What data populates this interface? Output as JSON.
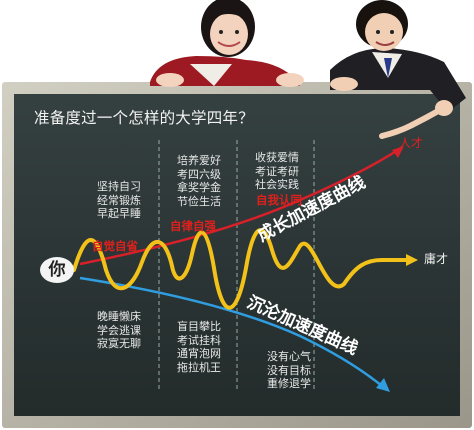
{
  "title": "准备度过一个怎样的大学四年？",
  "you_label": "你",
  "labels": {
    "talent": "人才",
    "mediocre": "庸才",
    "growth_curve": "成长加速度曲线",
    "sink_curve": "沉沦加速度曲线"
  },
  "red_tags": [
    "自觉自省",
    "自律自强",
    "自我认同"
  ],
  "top_groups": [
    "坚持自习\n经常锻炼\n早起早睡",
    "培养爱好\n考四六级\n拿奖学金\n节俭生活",
    "收获爱情\n考证考研\n社会实践"
  ],
  "bottom_groups": [
    "晚睡懒床\n学会逃课\n寂寞无聊",
    "盲目攀比\n考试挂科\n通宵泡网\n拖拉机王",
    "没有心气\n没有目标\n重修退学"
  ],
  "colors": {
    "board": "#2c3434",
    "frame": "#b8b4a6",
    "growth_arrow": "#d8202a",
    "sink_arrow": "#2f9de0",
    "wave": "#f2c21a",
    "tag": "#e0201c"
  }
}
